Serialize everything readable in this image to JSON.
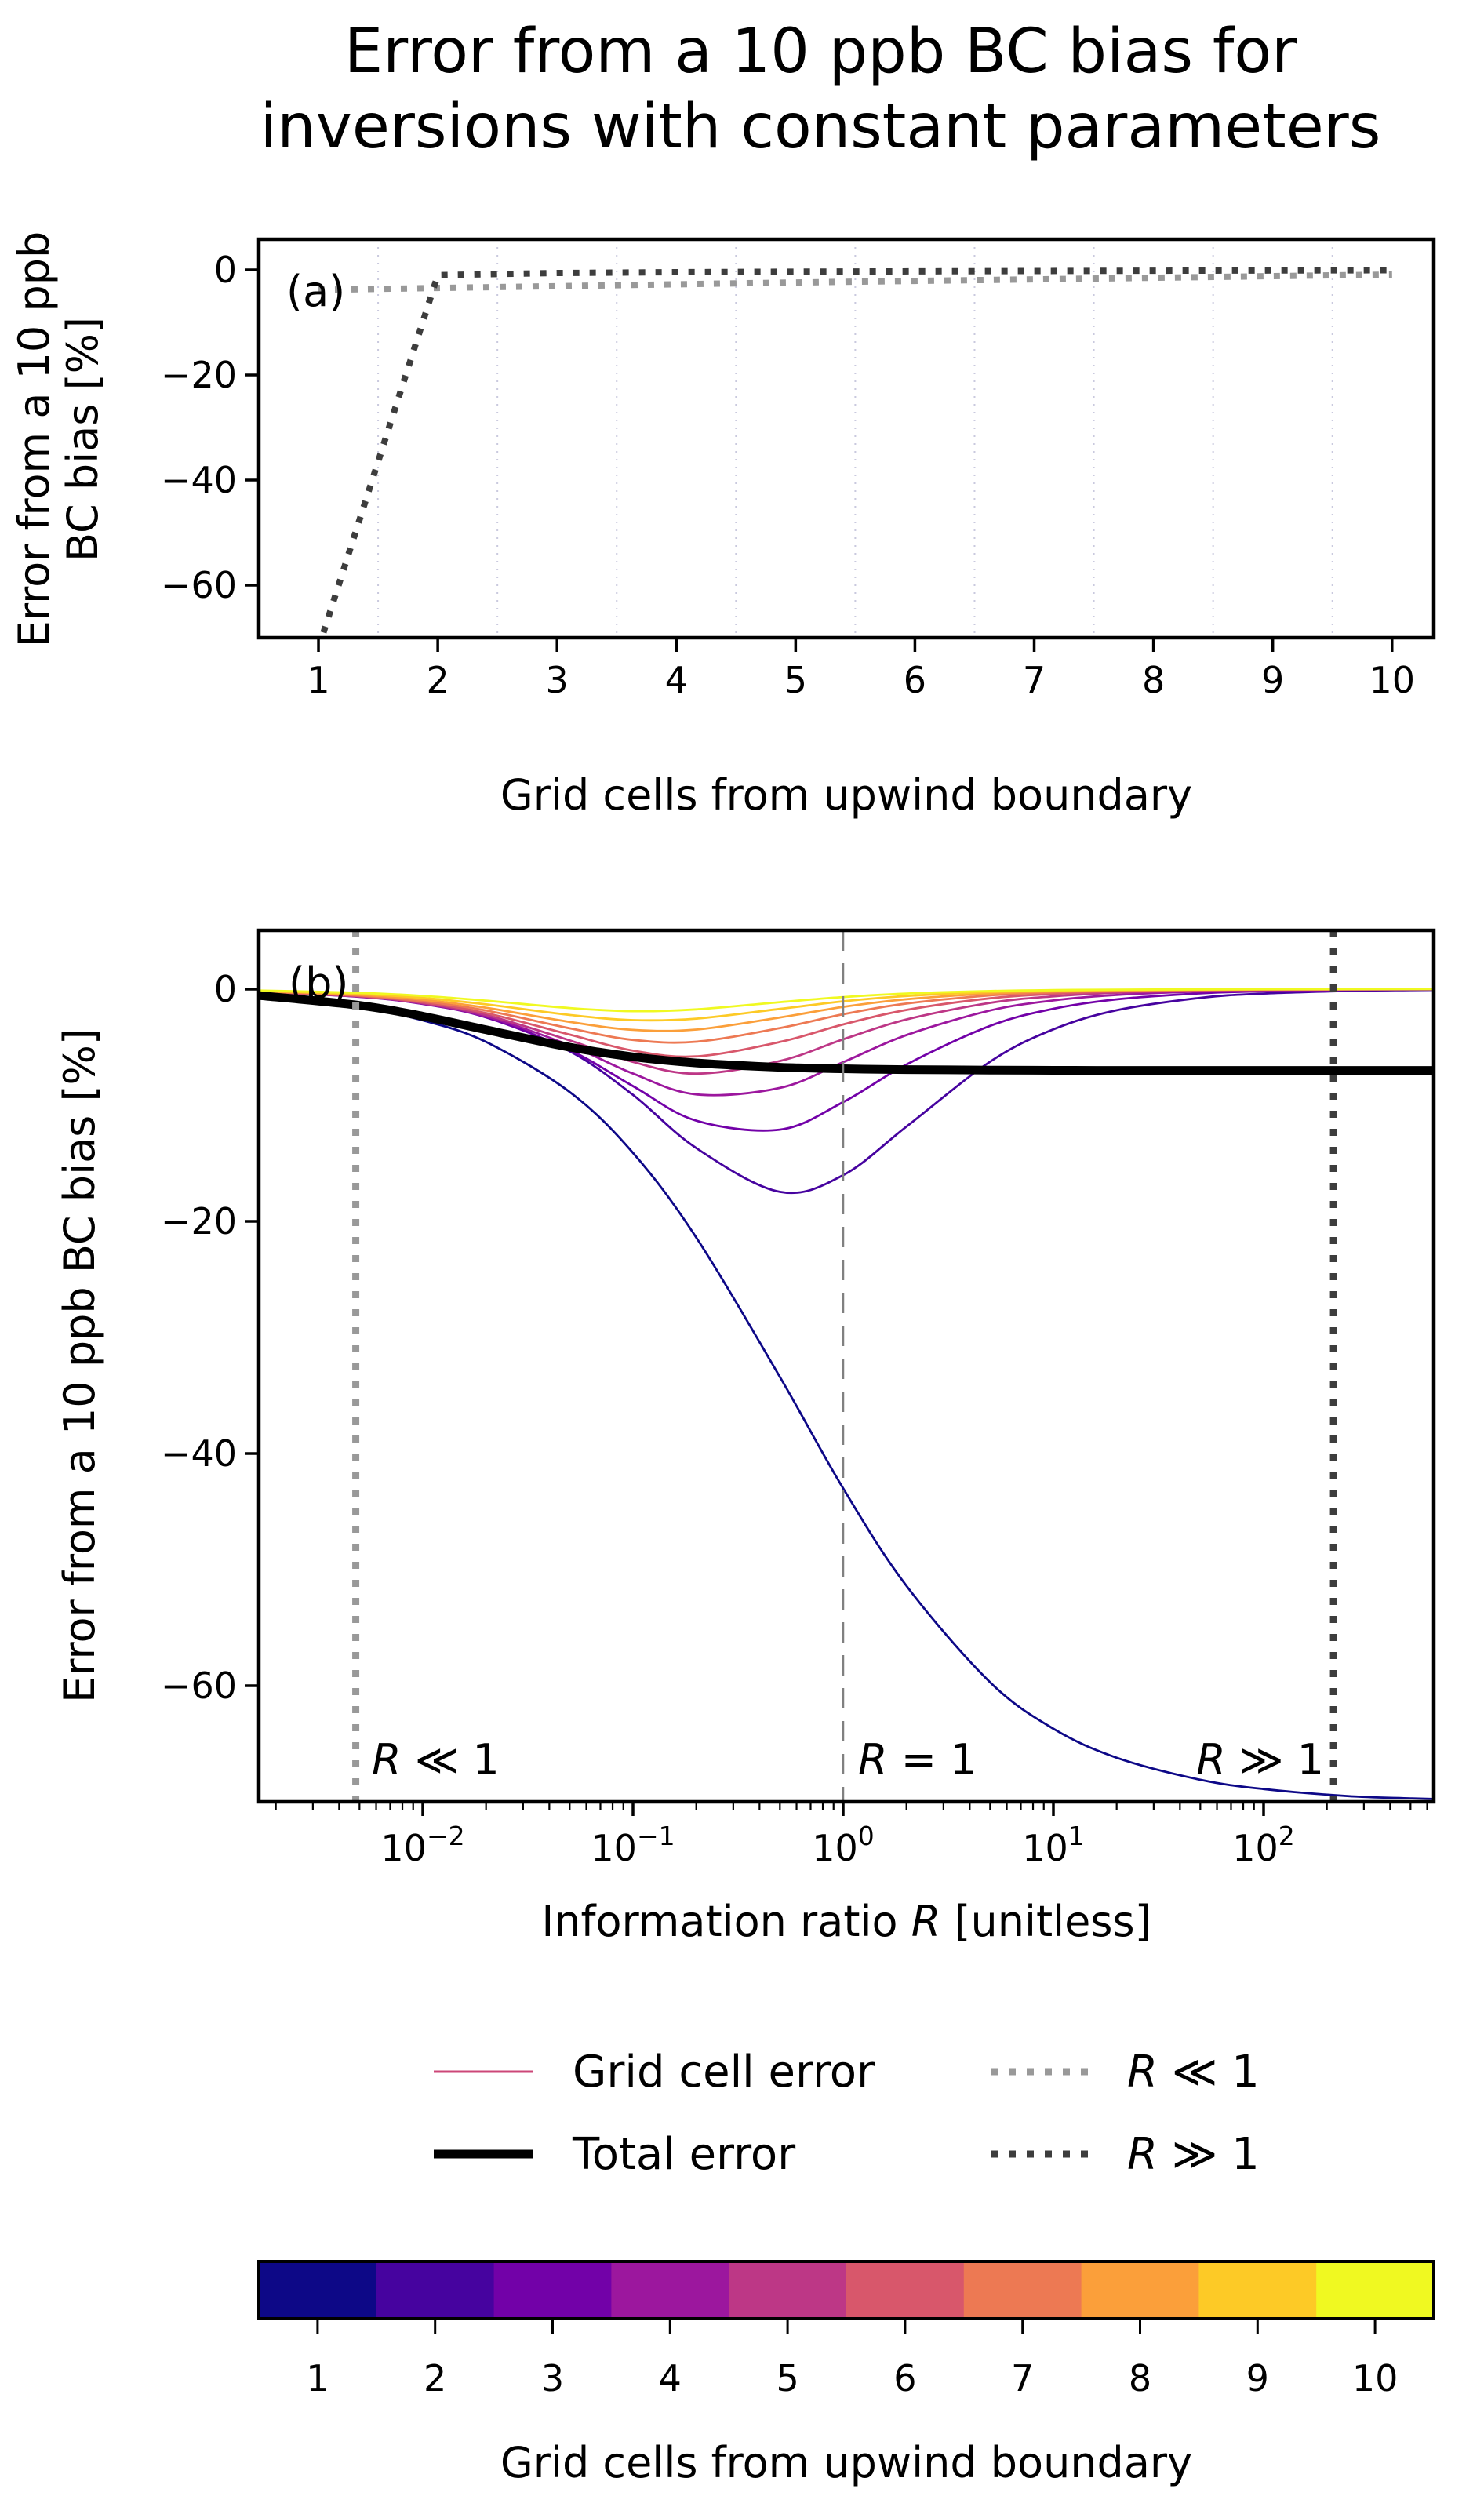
{
  "title": {
    "line1": "Error from a 10 ppb BC bias for",
    "line2": "inversions with constant parameters"
  },
  "chart_data": {
    "type": "line",
    "panel_a": {
      "tag": "(a)",
      "xlabel": "Grid cells from upwind boundary",
      "ylabel_line1": "Error from a 10 ppb",
      "ylabel_line2": "BC bias [%]",
      "x_ticks": [
        1,
        2,
        3,
        4,
        5,
        6,
        7,
        8,
        9,
        10
      ],
      "y_ticks": [
        0,
        -20,
        -40,
        -60
      ],
      "xlim": [
        0.5,
        10.35
      ],
      "ylim": [
        5.8,
        -70
      ],
      "grid_x": [
        1.5,
        2.5,
        3.5,
        4.5,
        5.5,
        6.5,
        7.5,
        8.5,
        9.5
      ],
      "grid_color": "#c9c9de",
      "series": [
        {
          "name": "R << 1",
          "color": "#999999",
          "style": "dotted",
          "x": [
            1,
            2,
            3,
            4,
            5,
            6,
            7,
            8,
            9,
            10
          ],
          "values": [
            -3.8,
            -3.45,
            -3.1,
            -2.75,
            -2.4,
            -2.1,
            -1.8,
            -1.5,
            -1.2,
            -0.9
          ]
        },
        {
          "name": "R >> 1",
          "color": "#3d3d3d",
          "style": "dotted",
          "x": [
            1,
            2,
            3,
            4,
            5,
            6,
            7,
            8,
            9,
            10
          ],
          "values": [
            -72,
            -1.0,
            -0.6,
            -0.45,
            -0.35,
            -0.28,
            -0.22,
            -0.17,
            -0.12,
            -0.08
          ]
        }
      ]
    },
    "panel_b": {
      "tag": "(b)",
      "xlabel_pre": "Information ratio ",
      "xlabel_var": "R",
      "xlabel_post": " [unitless]",
      "xscale": "log",
      "x_tick_exponents": [
        -2,
        -1,
        0,
        1,
        2
      ],
      "y_ticks": [
        0,
        -20,
        -40,
        -60
      ],
      "xlim": [
        0.00166,
        640
      ],
      "ylim": [
        5.1,
        -70
      ],
      "R": [
        0.0016,
        0.005,
        0.01,
        0.02,
        0.05,
        0.1,
        0.2,
        0.5,
        1,
        2,
        5,
        10,
        20,
        50,
        100,
        250,
        500,
        800
      ],
      "series": [
        {
          "name": "cell 1",
          "color": "#0d0887",
          "values": [
            -0.64,
            -1.57,
            -2.69,
            -4.55,
            -8.86,
            -14.1,
            -21.4,
            -33.4,
            -43.0,
            -51.4,
            -59.7,
            -63.7,
            -66.2,
            -68.1,
            -68.9,
            -69.5,
            -69.7,
            -69.8
          ]
        },
        {
          "name": "cell 2",
          "color": "#46039f",
          "values": [
            -0.2,
            -0.62,
            -1.23,
            -2.37,
            -5.35,
            -9.11,
            -13.69,
            -17.46,
            -16.02,
            -11.84,
            -6.25,
            -3.46,
            -1.82,
            -0.75,
            -0.38,
            -0.15,
            -0.08,
            -0.05
          ]
        },
        {
          "name": "cell 3",
          "color": "#7201a8",
          "values": [
            -0.22,
            -0.66,
            -1.28,
            -2.43,
            -5.24,
            -8.35,
            -11.33,
            -12.1,
            -9.73,
            -6.49,
            -3.16,
            -1.69,
            -0.88,
            -0.36,
            -0.18,
            -0.07,
            -0.04,
            -0.02
          ]
        },
        {
          "name": "cell 4",
          "color": "#9c179e",
          "values": [
            -0.22,
            -0.65,
            -1.26,
            -2.35,
            -4.84,
            -7.27,
            -9.07,
            -8.51,
            -6.29,
            -3.95,
            -1.84,
            -0.97,
            -0.5,
            -0.2,
            -0.1,
            -0.04,
            -0.02,
            -0.01
          ]
        },
        {
          "name": "cell 5",
          "color": "#bd3786",
          "values": [
            -0.21,
            -0.63,
            -1.21,
            -2.23,
            -4.41,
            -6.27,
            -7.28,
            -6.19,
            -4.32,
            -2.61,
            -1.18,
            -0.62,
            -0.31,
            -0.13,
            -0.06,
            -0.03,
            -0.01,
            -0.01
          ]
        },
        {
          "name": "cell 6",
          "color": "#d8576b",
          "values": [
            -0.2,
            -0.6,
            -1.14,
            -2.06,
            -3.91,
            -5.3,
            -5.79,
            -4.55,
            -3.04,
            -1.79,
            -0.79,
            -0.41,
            -0.21,
            -0.08,
            -0.04,
            -0.02,
            -0.01,
            -0.01
          ]
        },
        {
          "name": "cell 7",
          "color": "#ed7953",
          "values": [
            -0.18,
            -0.55,
            -1.04,
            -1.84,
            -3.37,
            -4.37,
            -4.53,
            -3.35,
            -2.16,
            -1.24,
            -0.54,
            -0.28,
            -0.14,
            -0.06,
            -0.03,
            -0.01,
            -0.01,
            0.0
          ]
        },
        {
          "name": "cell 8",
          "color": "#fb9f3a",
          "values": [
            -0.16,
            -0.49,
            -0.91,
            -1.6,
            -2.82,
            -3.51,
            -3.48,
            -2.44,
            -1.53,
            -0.87,
            -0.38,
            -0.19,
            -0.1,
            -0.04,
            -0.02,
            -0.01,
            0.0,
            0.0
          ]
        },
        {
          "name": "cell 9",
          "color": "#fdca26",
          "values": [
            -0.14,
            -0.41,
            -0.76,
            -1.31,
            -2.22,
            -2.67,
            -2.54,
            -1.7,
            -1.05,
            -0.59,
            -0.25,
            -0.13,
            -0.07,
            -0.03,
            -0.01,
            -0.01,
            0.0,
            0.0
          ]
        },
        {
          "name": "cell 10",
          "color": "#f0f921",
          "values": [
            -0.11,
            -0.32,
            -0.58,
            -0.99,
            -1.63,
            -1.9,
            -1.74,
            -1.12,
            -0.68,
            -0.38,
            -0.16,
            -0.08,
            -0.04,
            -0.02,
            -0.01,
            0.0,
            0.0,
            0.0
          ]
        }
      ],
      "total_series": {
        "name": "Total error",
        "color": "#000000",
        "values": [
          -0.52,
          -1.4,
          -2.33,
          -3.5,
          -5.0,
          -5.83,
          -6.36,
          -6.73,
          -6.86,
          -6.93,
          -6.97,
          -6.99,
          -7.0,
          -7.0,
          -7.0,
          -7.0,
          -7.0,
          -7.0
        ]
      },
      "vlines": [
        {
          "name": "R << 1 line",
          "R": 0.0048,
          "color": "#999999",
          "style": "dotted",
          "width": 9
        },
        {
          "name": "R = 1 line",
          "R": 1,
          "color": "#808080",
          "style": "dashed",
          "width": 2.5
        },
        {
          "name": "R >> 1 line",
          "R": 215,
          "color": "#3d3d3d",
          "style": "dotted",
          "width": 9
        }
      ],
      "annotations": [
        {
          "var": "R",
          "rest": " ≪ 1",
          "anchor": "start"
        },
        {
          "var": "R",
          "rest": " = 1",
          "anchor": "start"
        },
        {
          "var": "R",
          "rest": " ≫ 1",
          "anchor": "end"
        }
      ]
    },
    "colorbar": {
      "colors": [
        "#0d0887",
        "#46039f",
        "#7201a8",
        "#9c179e",
        "#bd3786",
        "#d8576b",
        "#ed7953",
        "#fb9f3a",
        "#fdca26",
        "#f0f921"
      ],
      "tick_labels": [
        "1",
        "2",
        "3",
        "4",
        "5",
        "6",
        "7",
        "8",
        "9",
        "10"
      ],
      "label": "Grid cells from upwind boundary"
    }
  },
  "legend": {
    "grid_cell_error": {
      "label": "Grid cell error",
      "color": "#cc4778",
      "width": 3
    },
    "total_error": {
      "label": "Total error",
      "color": "#000000",
      "width": 11
    },
    "r_much_less": {
      "var": "R",
      "rest": " ≪ 1",
      "color": "#999999"
    },
    "r_much_greater": {
      "var": "R",
      "rest": " ≫ 1",
      "color": "#3d3d3d"
    }
  }
}
